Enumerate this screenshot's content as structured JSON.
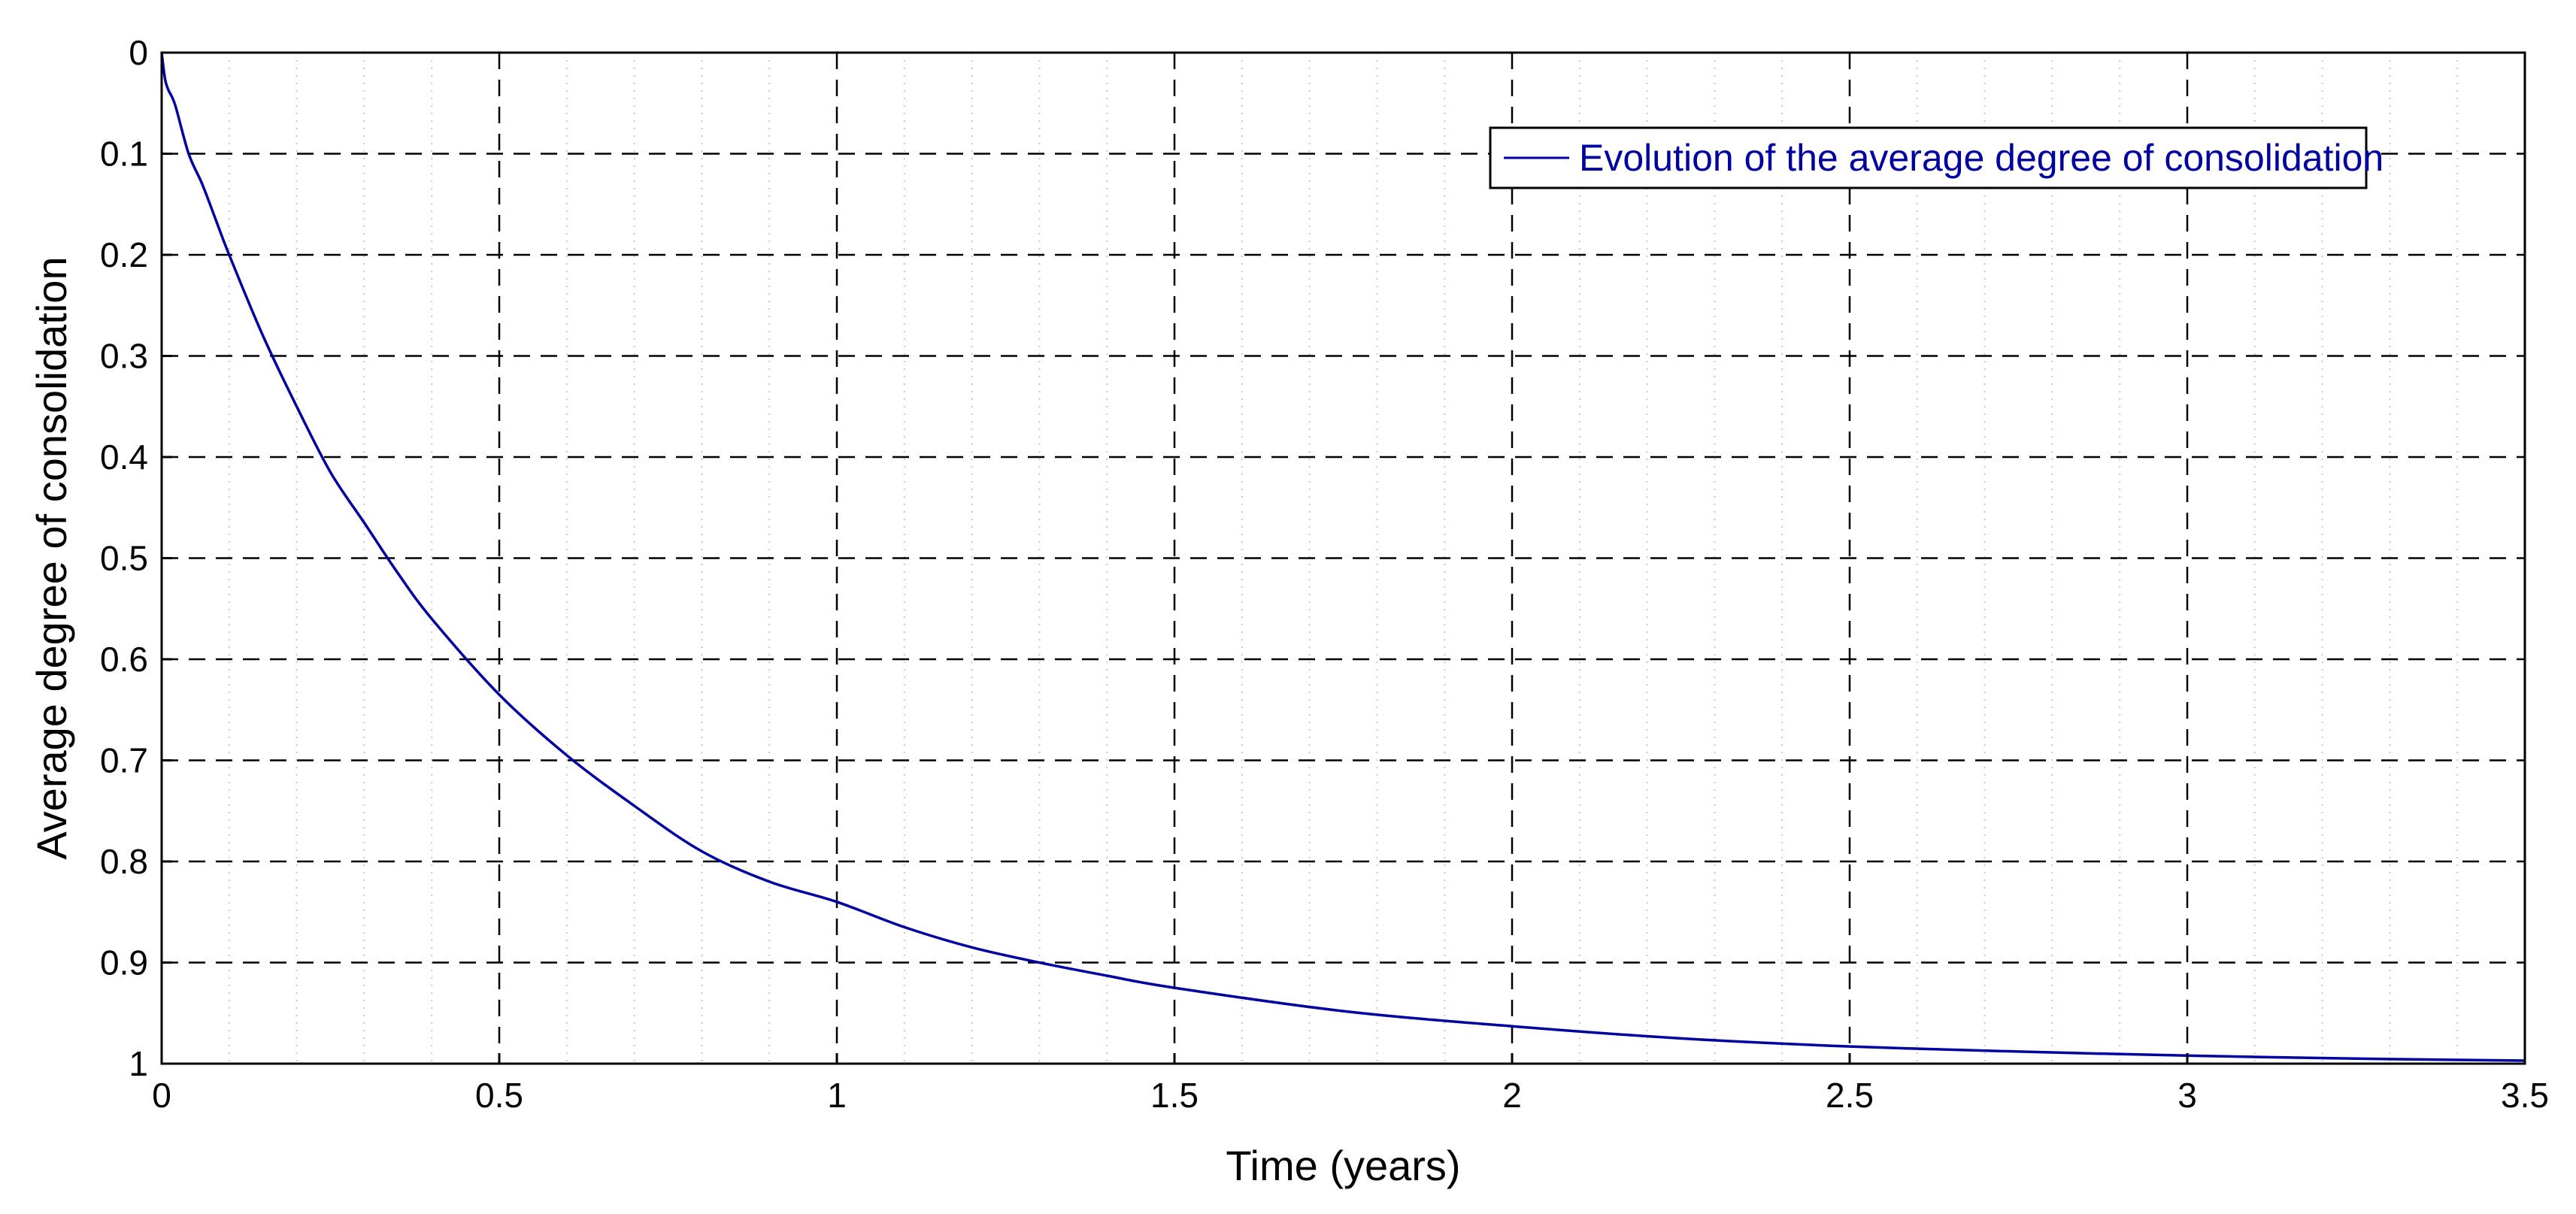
{
  "chart_data": {
    "type": "line",
    "xlabel": "Time (years)",
    "ylabel": "Average degree of consolidation",
    "xlim": [
      0,
      3.5
    ],
    "ylim": [
      0,
      1
    ],
    "y_axis_inverted": true,
    "grid": true,
    "minor_grid_x": true,
    "legend_position": "top-right",
    "x_ticks": [
      "0",
      "0.5",
      "1",
      "1.5",
      "2",
      "2.5",
      "3",
      "3.5"
    ],
    "y_ticks": [
      "0",
      "0.1",
      "0.2",
      "0.3",
      "0.4",
      "0.5",
      "0.6",
      "0.7",
      "0.8",
      "0.9",
      "1"
    ],
    "series": [
      {
        "name": "Evolution of the average degree of consolidation",
        "color": "#0000a0",
        "x": [
          0,
          0.005,
          0.01,
          0.02,
          0.04,
          0.06,
          0.08,
          0.1,
          0.15,
          0.2,
          0.25,
          0.3,
          0.35,
          0.4,
          0.5,
          0.6,
          0.7,
          0.8,
          0.9,
          1.0,
          1.1,
          1.2,
          1.3,
          1.4,
          1.5,
          1.75,
          2.0,
          2.25,
          2.5,
          2.75,
          3.0,
          3.25,
          3.5
        ],
        "y": [
          0,
          0.026,
          0.037,
          0.052,
          0.1,
          0.13,
          0.165,
          0.2,
          0.28,
          0.35,
          0.415,
          0.465,
          0.515,
          0.56,
          0.635,
          0.695,
          0.745,
          0.79,
          0.82,
          0.84,
          0.865,
          0.885,
          0.9,
          0.913,
          0.925,
          0.948,
          0.963,
          0.975,
          0.983,
          0.988,
          0.992,
          0.995,
          0.997
        ]
      }
    ]
  }
}
